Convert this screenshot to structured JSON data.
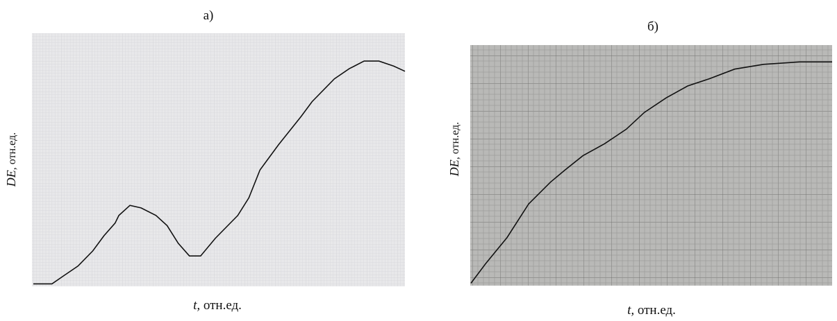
{
  "chart_data": [
    {
      "type": "line",
      "title": "а)",
      "x_label": {
        "symbol": "t,",
        "unit": " отн.ед."
      },
      "y_label": {
        "symbol": "DE",
        "unit": ", отн.ед."
      },
      "xlim": [
        0,
        1
      ],
      "ylim": [
        0,
        1
      ],
      "color": "#111111",
      "x": [
        0.0,
        0.05,
        0.08,
        0.12,
        0.16,
        0.19,
        0.22,
        0.23,
        0.26,
        0.29,
        0.33,
        0.36,
        0.39,
        0.42,
        0.45,
        0.49,
        0.55,
        0.58,
        0.61,
        0.66,
        0.72,
        0.75,
        0.81,
        0.85,
        0.89,
        0.93,
        0.97,
        1.0
      ],
      "values": [
        0.01,
        0.01,
        0.04,
        0.08,
        0.14,
        0.2,
        0.25,
        0.28,
        0.32,
        0.31,
        0.28,
        0.24,
        0.17,
        0.12,
        0.12,
        0.19,
        0.28,
        0.35,
        0.46,
        0.56,
        0.67,
        0.73,
        0.82,
        0.86,
        0.89,
        0.89,
        0.87,
        0.85
      ]
    },
    {
      "type": "line",
      "title": "б)",
      "x_label": {
        "symbol": "t,",
        "unit": " отн.ед."
      },
      "y_label": {
        "symbol": "DE",
        "unit": ", отн.ед."
      },
      "xlim": [
        0,
        1
      ],
      "ylim": [
        0,
        1
      ],
      "color": "#111111",
      "x": [
        0.0,
        0.04,
        0.1,
        0.16,
        0.22,
        0.26,
        0.31,
        0.37,
        0.43,
        0.48,
        0.54,
        0.6,
        0.66,
        0.73,
        0.81,
        0.91,
        1.0
      ],
      "values": [
        0.01,
        0.09,
        0.2,
        0.34,
        0.43,
        0.48,
        0.54,
        0.59,
        0.65,
        0.72,
        0.78,
        0.83,
        0.86,
        0.9,
        0.92,
        0.93,
        0.93
      ]
    }
  ]
}
